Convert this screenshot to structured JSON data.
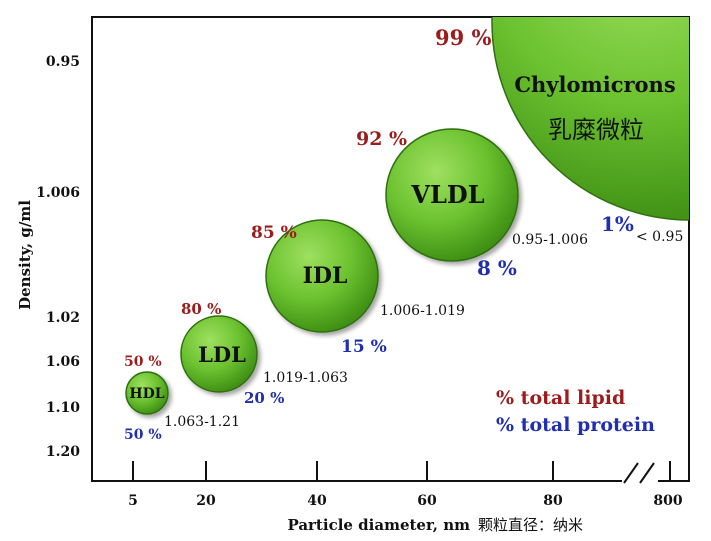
{
  "chart_data": {
    "type": "scatter",
    "title": "",
    "xlabel": "Particle diameter, nm",
    "xlabel_cn": "颗粒直径：纳米",
    "ylabel": "Density, g/ml",
    "x_ticks": [
      "5",
      "20",
      "40",
      "60",
      "80",
      "800"
    ],
    "y_ticks": [
      "0.95",
      "1.006",
      "1.02",
      "1.06",
      "1.10",
      "1.20"
    ],
    "axis_break": "between 80 and 800",
    "particles": [
      {
        "name": "HDL",
        "lipid": "50 %",
        "protein": "50 %",
        "density_range": "1.063-1.21",
        "diameter_nm": 5
      },
      {
        "name": "LDL",
        "lipid": "80 %",
        "protein": "20 %",
        "density_range": "1.019-1.063",
        "diameter_nm": 20
      },
      {
        "name": "IDL",
        "lipid": "85 %",
        "protein": "15 %",
        "density_range": "1.006-1.019",
        "diameter_nm": 40
      },
      {
        "name": "VLDL",
        "lipid": "92 %",
        "protein": "8 %",
        "density_range": "0.95-1.006",
        "diameter_nm": 63
      },
      {
        "name": "Chylomicrons",
        "name_cn": "乳糜微粒",
        "lipid": "99 %",
        "protein": "1%",
        "density_range": "< 0.95",
        "diameter_nm": 800
      }
    ],
    "legend": {
      "lipid": "% total lipid",
      "protein": "% total protein",
      "position": "bottom-right"
    },
    "colors": {
      "bubble": "#6cc230",
      "lipid": "#9b1c1c",
      "protein": "#1f2fb0"
    }
  }
}
